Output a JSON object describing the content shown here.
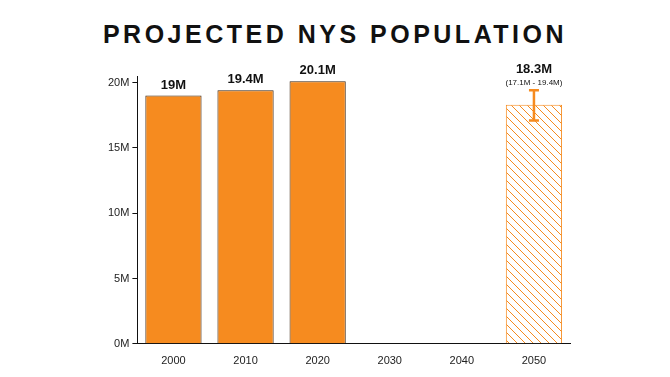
{
  "chart_data": {
    "type": "bar",
    "title": "PROJECTED NYS POPULATION",
    "categories": [
      "2000",
      "2010",
      "2020",
      "2030",
      "2040",
      "2050"
    ],
    "values": [
      19,
      19.4,
      20.1,
      null,
      null,
      18.3
    ],
    "value_labels": [
      "19M",
      "19.4M",
      "20.1M",
      null,
      null,
      "18.3M"
    ],
    "error_low": [
      null,
      null,
      null,
      null,
      null,
      17.1
    ],
    "error_high": [
      null,
      null,
      null,
      null,
      null,
      19.4
    ],
    "error_labels": [
      null,
      null,
      null,
      null,
      null,
      "(17.1M - 19.4M)"
    ],
    "color": "#f68b1f",
    "ylim": [
      0,
      20.5
    ],
    "yticks": [
      {
        "value": 0,
        "label": "0M"
      },
      {
        "value": 5,
        "label": "5M"
      },
      {
        "value": 10,
        "label": "10M"
      },
      {
        "value": 15,
        "label": "15M"
      },
      {
        "value": 20,
        "label": "20M"
      }
    ],
    "grid": false,
    "data_labels": true
  }
}
